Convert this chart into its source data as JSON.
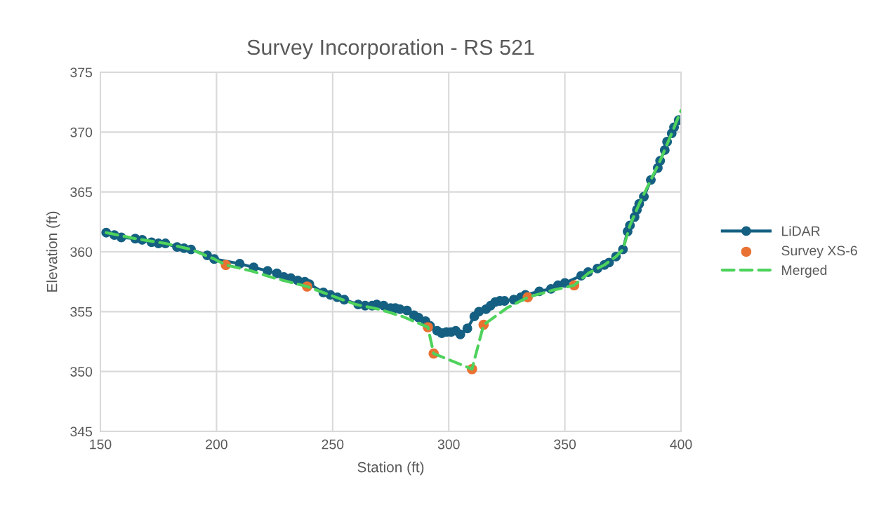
{
  "chart_data": {
    "type": "line",
    "title": "Survey Incorporation - RS 521",
    "xlabel": "Station (ft)",
    "ylabel": "Elevation (ft)",
    "xlim": [
      150,
      400
    ],
    "xticks": [
      150,
      200,
      250,
      300,
      350,
      400
    ],
    "ylim": [
      345,
      375
    ],
    "yticks": [
      345,
      350,
      355,
      360,
      365,
      370,
      375
    ],
    "grid": true,
    "legend": "right",
    "series": [
      {
        "name": "LiDAR",
        "color": "#156082",
        "marker": "circle",
        "line_style": "solid",
        "x": [
          152.5,
          156,
          159,
          165,
          168,
          172,
          175,
          178,
          183,
          186,
          189,
          196,
          199,
          210,
          216,
          222,
          226,
          229,
          232,
          235,
          238,
          240,
          246,
          249,
          252,
          255,
          261,
          264,
          267,
          269,
          272,
          275,
          277,
          279,
          282,
          285,
          287,
          290,
          292,
          295,
          297,
          299,
          301,
          303,
          305,
          308,
          311,
          313,
          316,
          318,
          320,
          322,
          324,
          328,
          331,
          333,
          339,
          344,
          347,
          350,
          357,
          360,
          364,
          367,
          369,
          372,
          375,
          377,
          378,
          380,
          381,
          382,
          384,
          387,
          390,
          391,
          393,
          394,
          396,
          397,
          399
        ],
        "values": [
          361.6,
          361.4,
          361.2,
          361.1,
          361.0,
          360.8,
          360.7,
          360.7,
          360.4,
          360.3,
          360.2,
          359.7,
          359.4,
          359.0,
          358.7,
          358.4,
          358.2,
          357.9,
          357.8,
          357.6,
          357.5,
          357.3,
          356.6,
          356.4,
          356.2,
          356.0,
          355.6,
          355.5,
          355.5,
          355.6,
          355.5,
          355.3,
          355.3,
          355.2,
          355.1,
          354.7,
          354.5,
          354.2,
          353.8,
          353.4,
          353.2,
          353.3,
          353.3,
          353.4,
          353.1,
          353.6,
          354.6,
          355.0,
          355.2,
          355.5,
          355.8,
          355.9,
          355.9,
          356.0,
          356.2,
          356.4,
          356.7,
          356.9,
          357.2,
          357.4,
          358.0,
          358.3,
          358.6,
          358.9,
          359.1,
          359.6,
          360.2,
          361.7,
          362.2,
          362.9,
          363.5,
          364.0,
          364.6,
          366.0,
          367.0,
          367.6,
          368.5,
          369.2,
          369.9,
          370.4,
          371.0
        ]
      },
      {
        "name": "Survey XS-6",
        "type": "scatter",
        "color": "#e97132",
        "marker": "circle",
        "x": [
          204,
          239,
          291,
          293.5,
          310,
          315,
          334,
          354
        ],
        "values": [
          358.9,
          357.1,
          353.7,
          351.5,
          350.2,
          353.9,
          356.2,
          357.2
        ]
      },
      {
        "name": "Merged",
        "color": "#4ed25c",
        "line_style": "dashed",
        "x": [
          152.5,
          165,
          178,
          189,
          199,
          204,
          215,
          225,
          239,
          250,
          260,
          270,
          280,
          291,
          293.5,
          310,
          315,
          325,
          334,
          345,
          354,
          360,
          367,
          372,
          375,
          378,
          382,
          387,
          391,
          396,
          400
        ],
        "values": [
          361.6,
          361.1,
          360.7,
          360.2,
          359.4,
          358.9,
          358.4,
          357.8,
          357.1,
          356.3,
          355.6,
          355.2,
          354.6,
          353.7,
          351.5,
          350.2,
          353.9,
          355.3,
          356.2,
          356.8,
          357.2,
          358.2,
          358.9,
          359.6,
          360.2,
          362.2,
          364.0,
          366.0,
          367.6,
          369.9,
          371.8
        ]
      }
    ]
  }
}
